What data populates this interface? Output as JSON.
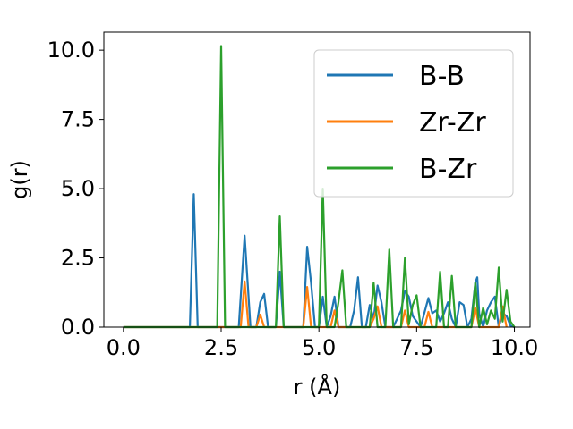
{
  "chart_data": {
    "type": "line",
    "xlabel": "r (Å)",
    "ylabel": "g(r)",
    "xlim": [
      -0.5,
      10.4
    ],
    "ylim": [
      0,
      10.65
    ],
    "xticks": [
      0.0,
      2.5,
      5.0,
      7.5,
      10.0
    ],
    "xtick_labels": [
      "0.0",
      "2.5",
      "5.0",
      "7.5",
      "10.0"
    ],
    "yticks": [
      0.0,
      2.5,
      5.0,
      7.5,
      10.0
    ],
    "ytick_labels": [
      "0.0",
      "2.5",
      "5.0",
      "7.5",
      "10.0"
    ],
    "grid": false,
    "legend_position": "upper-right",
    "series": [
      {
        "name": "B-B",
        "color": "#1f77b4",
        "points": [
          [
            0,
            0
          ],
          [
            1.7,
            0
          ],
          [
            1.8,
            4.8
          ],
          [
            1.9,
            0
          ],
          [
            2.95,
            0
          ],
          [
            3.1,
            3.3
          ],
          [
            3.25,
            0
          ],
          [
            3.4,
            0
          ],
          [
            3.5,
            0.9
          ],
          [
            3.6,
            1.2
          ],
          [
            3.7,
            0
          ],
          [
            3.9,
            0
          ],
          [
            4.0,
            2.0
          ],
          [
            4.1,
            0
          ],
          [
            4.6,
            0
          ],
          [
            4.7,
            2.9
          ],
          [
            4.8,
            1.6
          ],
          [
            4.9,
            0
          ],
          [
            5.0,
            0
          ],
          [
            5.1,
            1.1
          ],
          [
            5.2,
            0
          ],
          [
            5.3,
            0.4
          ],
          [
            5.4,
            1.1
          ],
          [
            5.5,
            0
          ],
          [
            5.8,
            0
          ],
          [
            5.9,
            0.6
          ],
          [
            6.0,
            1.8
          ],
          [
            6.1,
            0
          ],
          [
            6.2,
            0
          ],
          [
            6.3,
            0.8
          ],
          [
            6.4,
            0.3
          ],
          [
            6.5,
            1.5
          ],
          [
            6.6,
            0.9
          ],
          [
            6.7,
            0
          ],
          [
            6.9,
            0
          ],
          [
            7.0,
            0.3
          ],
          [
            7.1,
            0.6
          ],
          [
            7.2,
            1.3
          ],
          [
            7.3,
            1.1
          ],
          [
            7.4,
            0.4
          ],
          [
            7.5,
            0.2
          ],
          [
            7.6,
            0
          ],
          [
            7.8,
            1.05
          ],
          [
            7.9,
            0.5
          ],
          [
            8.0,
            0.6
          ],
          [
            8.1,
            0.2
          ],
          [
            8.2,
            0.5
          ],
          [
            8.3,
            0.9
          ],
          [
            8.4,
            0.3
          ],
          [
            8.5,
            0
          ],
          [
            8.6,
            0.9
          ],
          [
            8.7,
            0.8
          ],
          [
            8.8,
            0
          ],
          [
            8.9,
            0.3
          ],
          [
            9.0,
            1.6
          ],
          [
            9.05,
            1.8
          ],
          [
            9.1,
            0.5
          ],
          [
            9.2,
            0
          ],
          [
            9.3,
            0.6
          ],
          [
            9.4,
            0.9
          ],
          [
            9.5,
            1.1
          ],
          [
            9.6,
            0
          ],
          [
            9.7,
            0.5
          ],
          [
            9.8,
            0.4
          ],
          [
            9.9,
            0.05
          ],
          [
            10.0,
            0
          ]
        ]
      },
      {
        "name": "Zr-Zr",
        "color": "#ff7f0e",
        "points": [
          [
            0,
            0
          ],
          [
            3.0,
            0
          ],
          [
            3.1,
            1.65
          ],
          [
            3.2,
            0
          ],
          [
            3.4,
            0
          ],
          [
            3.5,
            0.45
          ],
          [
            3.6,
            0
          ],
          [
            4.6,
            0
          ],
          [
            4.7,
            1.45
          ],
          [
            4.8,
            0
          ],
          [
            5.3,
            0
          ],
          [
            5.4,
            0.6
          ],
          [
            5.5,
            0
          ],
          [
            6.3,
            0
          ],
          [
            6.4,
            0.3
          ],
          [
            6.5,
            0.75
          ],
          [
            6.6,
            0
          ],
          [
            7.1,
            0
          ],
          [
            7.2,
            0.6
          ],
          [
            7.3,
            0
          ],
          [
            7.7,
            0
          ],
          [
            7.8,
            0.55
          ],
          [
            7.9,
            0
          ],
          [
            8.9,
            0
          ],
          [
            9.0,
            0.7
          ],
          [
            9.1,
            0
          ],
          [
            9.6,
            0
          ],
          [
            9.7,
            0.75
          ],
          [
            9.8,
            0
          ]
        ]
      },
      {
        "name": "B-Zr",
        "color": "#2ca02c",
        "points": [
          [
            0,
            0
          ],
          [
            2.4,
            0
          ],
          [
            2.5,
            10.15
          ],
          [
            2.6,
            0
          ],
          [
            3.9,
            0
          ],
          [
            4.0,
            4.0
          ],
          [
            4.1,
            0
          ],
          [
            4.2,
            0
          ],
          [
            5.0,
            0
          ],
          [
            5.1,
            5.0
          ],
          [
            5.2,
            0
          ],
          [
            5.4,
            0
          ],
          [
            5.5,
            0.9
          ],
          [
            5.6,
            2.05
          ],
          [
            5.7,
            0
          ],
          [
            6.3,
            0
          ],
          [
            6.4,
            1.6
          ],
          [
            6.5,
            0
          ],
          [
            6.7,
            0
          ],
          [
            6.8,
            2.8
          ],
          [
            6.9,
            0
          ],
          [
            7.1,
            0
          ],
          [
            7.2,
            2.5
          ],
          [
            7.3,
            0.1
          ],
          [
            7.4,
            0.8
          ],
          [
            7.5,
            1.15
          ],
          [
            7.6,
            0
          ],
          [
            8.0,
            0
          ],
          [
            8.1,
            2.0
          ],
          [
            8.2,
            0
          ],
          [
            8.3,
            0
          ],
          [
            8.4,
            1.85
          ],
          [
            8.5,
            0
          ],
          [
            8.9,
            0
          ],
          [
            9.0,
            1.6
          ],
          [
            9.1,
            0
          ],
          [
            9.2,
            0.7
          ],
          [
            9.3,
            0.1
          ],
          [
            9.4,
            0.6
          ],
          [
            9.5,
            0.3
          ],
          [
            9.6,
            2.15
          ],
          [
            9.7,
            0.2
          ],
          [
            9.8,
            1.35
          ],
          [
            9.9,
            0.2
          ],
          [
            10.0,
            0
          ]
        ]
      }
    ]
  }
}
